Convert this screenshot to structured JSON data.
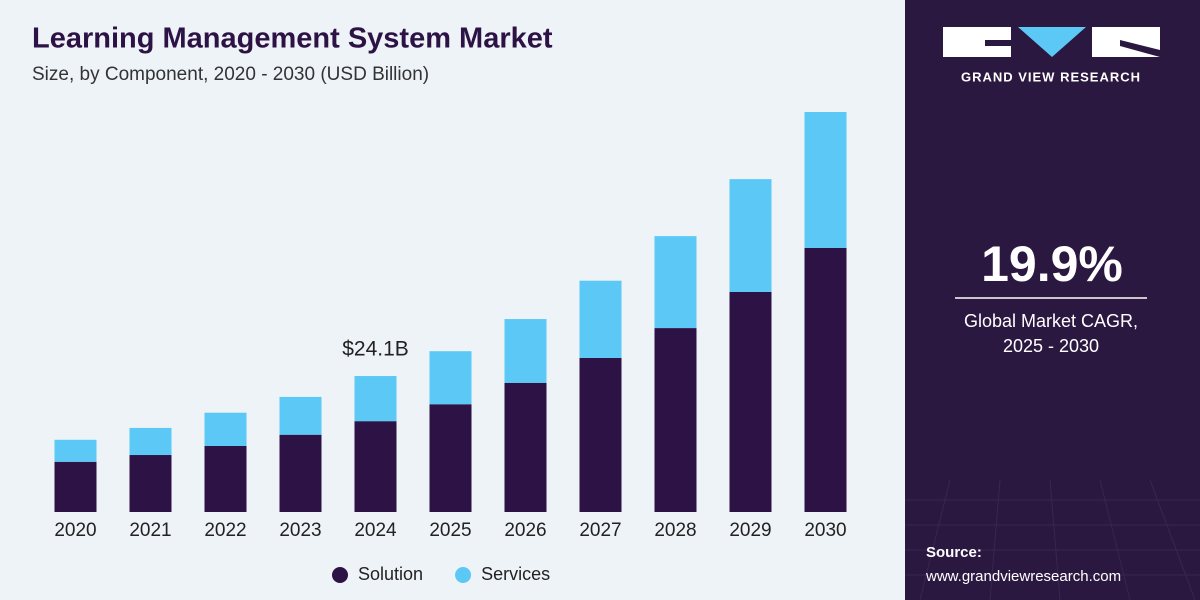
{
  "chart_data": {
    "type": "stacked_bar",
    "title": "Learning Management System Market",
    "subtitle": "Size, by Component, 2020 - 2030 (USD Billion)",
    "categories": [
      "2020",
      "2021",
      "2022",
      "2023",
      "2024",
      "2025",
      "2026",
      "2027",
      "2028",
      "2029",
      "2030"
    ],
    "series": [
      {
        "name": "Solution",
        "color": "#2d1245",
        "values": [
          8.9,
          10.1,
          11.7,
          13.7,
          16.1,
          19.1,
          22.9,
          27.3,
          32.6,
          39.0,
          46.8
        ]
      },
      {
        "name": "Services",
        "color": "#5bc8f5",
        "values": [
          3.9,
          4.8,
          5.9,
          6.7,
          8.0,
          9.4,
          11.3,
          13.7,
          16.3,
          20.0,
          24.1
        ]
      }
    ],
    "annotations": [
      {
        "category": "2024",
        "text": "$24.1B"
      }
    ],
    "legend": "bottom",
    "panel": {
      "brand": "GRAND VIEW RESEARCH",
      "cagr": "19.9%",
      "cagr_label": [
        "Global Market CAGR,",
        "2025 - 2030"
      ],
      "source_label": "Source:",
      "source_url": "www.grandviewresearch.com"
    }
  }
}
